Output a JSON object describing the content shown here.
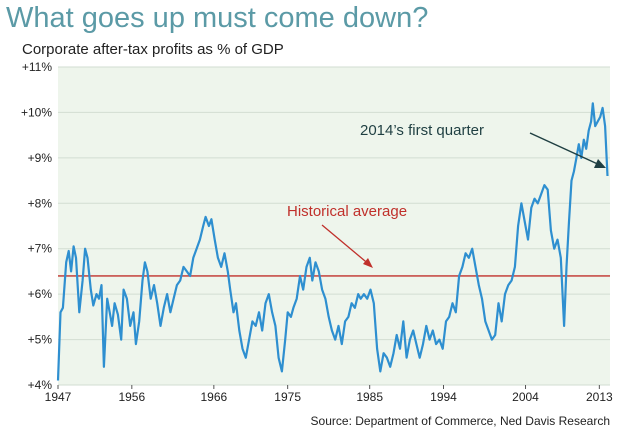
{
  "title": "What goes up must come down?",
  "subtitle": "Corporate after-tax profits as % of GDP",
  "source": "Source: Department of Commerce, Ned Davis Research",
  "colors": {
    "line": "#2e8fd0",
    "average": "#c0302b",
    "plot_bg": "#eef5ec",
    "grid": "#d2ddd2",
    "title": "#5b9aa6",
    "arrow_dark": "#1f3f42"
  },
  "chart_data": {
    "type": "line",
    "xlim": [
      1947,
      2014.3
    ],
    "ylim": [
      4,
      11
    ],
    "x_ticks": [
      1947,
      1956,
      1966,
      1975,
      1985,
      1994,
      2004,
      2013
    ],
    "x_tick_labels": [
      "1947",
      "1956",
      "1966",
      "1975",
      "1985",
      "1994",
      "2004",
      "2013"
    ],
    "y_ticks": [
      4,
      5,
      6,
      7,
      8,
      9,
      10,
      11
    ],
    "y_tick_labels": [
      "+4%",
      "+5%",
      "+6%",
      "+7%",
      "+8%",
      "+9%",
      "+10%",
      "+11%"
    ],
    "grid": "horizontal",
    "average": 6.4,
    "annotations": [
      {
        "text": "Historical average",
        "x": 1988,
        "y": 6.55
      },
      {
        "text": "2014’s first quarter",
        "x": 2014.1,
        "y": 8.6
      }
    ],
    "series": [
      {
        "points": [
          [
            1947.0,
            4.1
          ],
          [
            1947.3,
            5.6
          ],
          [
            1947.6,
            5.7
          ],
          [
            1948.0,
            6.7
          ],
          [
            1948.3,
            6.95
          ],
          [
            1948.6,
            6.5
          ],
          [
            1948.9,
            7.05
          ],
          [
            1949.2,
            6.8
          ],
          [
            1949.6,
            5.6
          ],
          [
            1950.0,
            6.3
          ],
          [
            1950.3,
            7.0
          ],
          [
            1950.6,
            6.8
          ],
          [
            1951.0,
            6.1
          ],
          [
            1951.3,
            5.75
          ],
          [
            1951.7,
            6.0
          ],
          [
            1952.0,
            5.9
          ],
          [
            1952.3,
            6.2
          ],
          [
            1952.6,
            4.4
          ],
          [
            1953.0,
            5.9
          ],
          [
            1953.3,
            5.6
          ],
          [
            1953.6,
            5.3
          ],
          [
            1953.9,
            5.8
          ],
          [
            1954.3,
            5.55
          ],
          [
            1954.7,
            5.0
          ],
          [
            1955.0,
            6.1
          ],
          [
            1955.4,
            5.9
          ],
          [
            1955.8,
            5.3
          ],
          [
            1956.2,
            5.6
          ],
          [
            1956.5,
            4.9
          ],
          [
            1956.9,
            5.4
          ],
          [
            1957.3,
            6.3
          ],
          [
            1957.6,
            6.7
          ],
          [
            1957.9,
            6.5
          ],
          [
            1958.3,
            5.9
          ],
          [
            1958.7,
            6.2
          ],
          [
            1959.1,
            5.8
          ],
          [
            1959.5,
            5.3
          ],
          [
            1959.9,
            5.7
          ],
          [
            1960.3,
            6.0
          ],
          [
            1960.7,
            5.6
          ],
          [
            1961.1,
            5.9
          ],
          [
            1961.5,
            6.2
          ],
          [
            1961.9,
            6.3
          ],
          [
            1962.3,
            6.6
          ],
          [
            1962.7,
            6.5
          ],
          [
            1963.1,
            6.4
          ],
          [
            1963.5,
            6.8
          ],
          [
            1963.9,
            7.0
          ],
          [
            1964.3,
            7.2
          ],
          [
            1964.7,
            7.5
          ],
          [
            1965.0,
            7.7
          ],
          [
            1965.4,
            7.5
          ],
          [
            1965.7,
            7.65
          ],
          [
            1966.1,
            7.2
          ],
          [
            1966.5,
            6.8
          ],
          [
            1966.9,
            6.6
          ],
          [
            1967.3,
            6.9
          ],
          [
            1967.7,
            6.5
          ],
          [
            1968.0,
            6.1
          ],
          [
            1968.4,
            5.6
          ],
          [
            1968.7,
            5.8
          ],
          [
            1969.1,
            5.2
          ],
          [
            1969.5,
            4.8
          ],
          [
            1969.9,
            4.6
          ],
          [
            1970.3,
            5.0
          ],
          [
            1970.7,
            5.4
          ],
          [
            1971.1,
            5.3
          ],
          [
            1971.5,
            5.6
          ],
          [
            1971.9,
            5.2
          ],
          [
            1972.3,
            5.8
          ],
          [
            1972.7,
            6.0
          ],
          [
            1973.1,
            5.6
          ],
          [
            1973.5,
            5.3
          ],
          [
            1973.9,
            4.6
          ],
          [
            1974.3,
            4.3
          ],
          [
            1974.7,
            5.0
          ],
          [
            1975.0,
            5.6
          ],
          [
            1975.4,
            5.5
          ],
          [
            1975.7,
            5.7
          ],
          [
            1976.1,
            5.9
          ],
          [
            1976.5,
            6.4
          ],
          [
            1976.9,
            6.1
          ],
          [
            1977.3,
            6.6
          ],
          [
            1977.7,
            6.8
          ],
          [
            1978.0,
            6.3
          ],
          [
            1978.4,
            6.7
          ],
          [
            1978.8,
            6.5
          ],
          [
            1979.2,
            6.1
          ],
          [
            1979.6,
            5.9
          ],
          [
            1980.0,
            5.5
          ],
          [
            1980.4,
            5.2
          ],
          [
            1980.8,
            5.0
          ],
          [
            1981.2,
            5.3
          ],
          [
            1981.6,
            4.9
          ],
          [
            1982.0,
            5.4
          ],
          [
            1982.4,
            5.5
          ],
          [
            1982.8,
            5.8
          ],
          [
            1983.2,
            5.7
          ],
          [
            1983.6,
            6.0
          ],
          [
            1983.9,
            5.9
          ],
          [
            1984.3,
            6.0
          ],
          [
            1984.7,
            5.9
          ],
          [
            1985.1,
            6.1
          ],
          [
            1985.5,
            5.8
          ],
          [
            1985.9,
            4.8
          ],
          [
            1986.3,
            4.3
          ],
          [
            1986.7,
            4.7
          ],
          [
            1987.1,
            4.6
          ],
          [
            1987.5,
            4.4
          ],
          [
            1987.9,
            4.7
          ],
          [
            1988.3,
            5.1
          ],
          [
            1988.7,
            4.8
          ],
          [
            1989.1,
            5.4
          ],
          [
            1989.5,
            4.6
          ],
          [
            1989.9,
            5.0
          ],
          [
            1990.3,
            5.2
          ],
          [
            1990.7,
            4.9
          ],
          [
            1991.1,
            4.6
          ],
          [
            1991.5,
            4.9
          ],
          [
            1991.9,
            5.3
          ],
          [
            1992.3,
            5.0
          ],
          [
            1992.7,
            5.2
          ],
          [
            1993.1,
            4.9
          ],
          [
            1993.5,
            5.0
          ],
          [
            1993.9,
            4.8
          ],
          [
            1994.3,
            5.4
          ],
          [
            1994.7,
            5.5
          ],
          [
            1995.1,
            5.8
          ],
          [
            1995.5,
            5.6
          ],
          [
            1995.9,
            6.4
          ],
          [
            1996.3,
            6.6
          ],
          [
            1996.7,
            6.9
          ],
          [
            1997.1,
            6.8
          ],
          [
            1997.5,
            7.0
          ],
          [
            1997.9,
            6.6
          ],
          [
            1998.3,
            6.2
          ],
          [
            1998.7,
            5.9
          ],
          [
            1999.1,
            5.4
          ],
          [
            1999.5,
            5.2
          ],
          [
            1999.9,
            5.0
          ],
          [
            2000.3,
            5.1
          ],
          [
            2000.7,
            5.8
          ],
          [
            2001.1,
            5.4
          ],
          [
            2001.5,
            6.0
          ],
          [
            2001.9,
            6.2
          ],
          [
            2002.3,
            6.3
          ],
          [
            2002.7,
            6.6
          ],
          [
            2003.1,
            7.5
          ],
          [
            2003.5,
            8.0
          ],
          [
            2003.9,
            7.6
          ],
          [
            2004.3,
            7.2
          ],
          [
            2004.7,
            7.9
          ],
          [
            2005.1,
            8.1
          ],
          [
            2005.5,
            8.0
          ],
          [
            2005.9,
            8.2
          ],
          [
            2006.3,
            8.4
          ],
          [
            2006.7,
            8.3
          ],
          [
            2007.1,
            7.4
          ],
          [
            2007.5,
            7.0
          ],
          [
            2007.9,
            7.2
          ],
          [
            2008.3,
            6.8
          ],
          [
            2008.7,
            5.3
          ],
          [
            2009.0,
            6.6
          ],
          [
            2009.3,
            7.6
          ],
          [
            2009.6,
            8.5
          ],
          [
            2009.9,
            8.7
          ],
          [
            2010.2,
            9.0
          ],
          [
            2010.5,
            9.3
          ],
          [
            2010.8,
            9.0
          ],
          [
            2011.1,
            9.4
          ],
          [
            2011.4,
            9.2
          ],
          [
            2011.7,
            9.6
          ],
          [
            2012.0,
            9.8
          ],
          [
            2012.2,
            10.2
          ],
          [
            2012.5,
            9.7
          ],
          [
            2012.8,
            9.8
          ],
          [
            2013.1,
            9.9
          ],
          [
            2013.4,
            10.1
          ],
          [
            2013.7,
            9.7
          ],
          [
            2014.0,
            8.6
          ]
        ]
      }
    ]
  }
}
